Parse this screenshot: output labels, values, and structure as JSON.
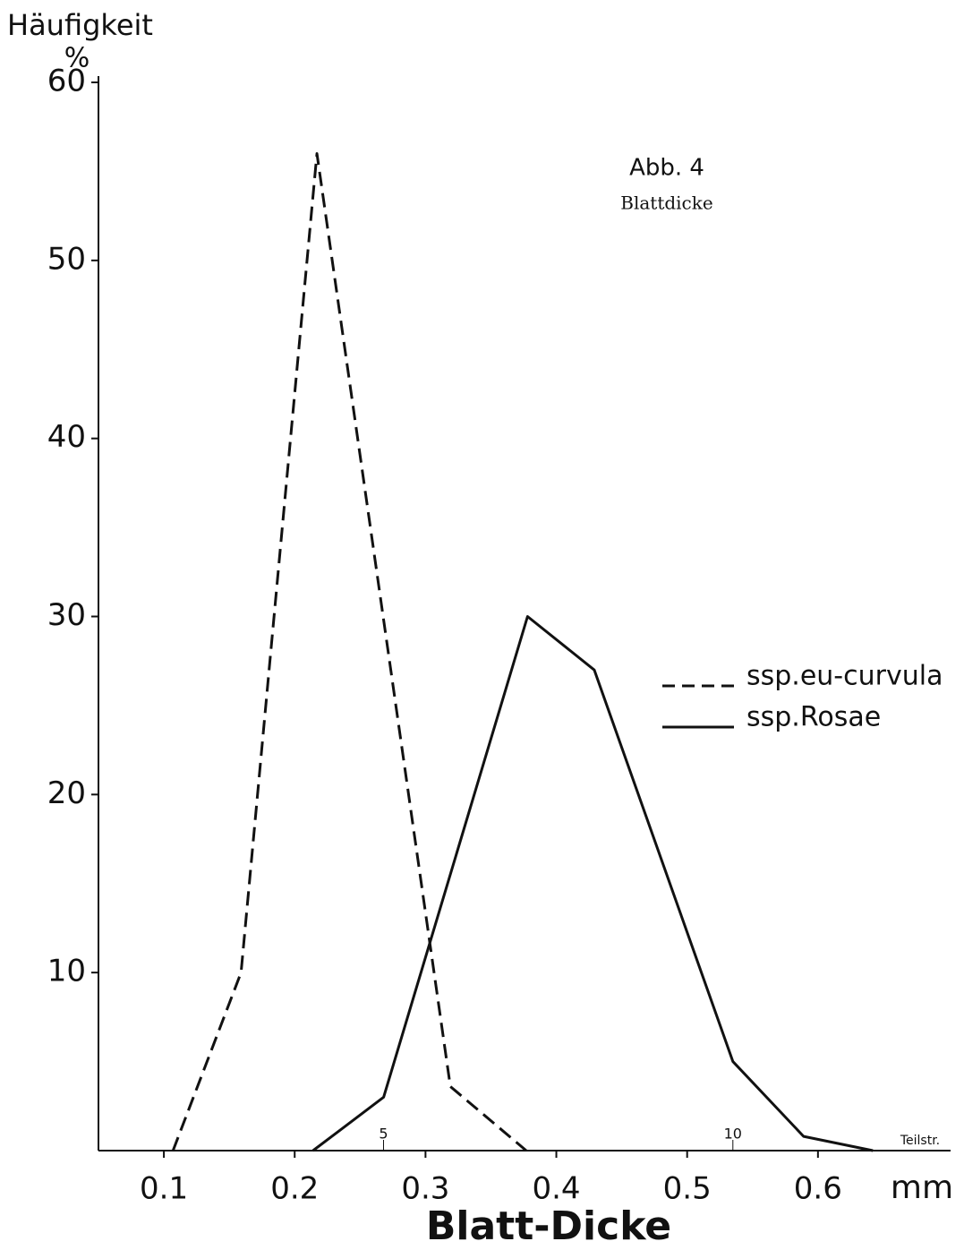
{
  "chart_data": {
    "type": "line",
    "title": "Abb. 4",
    "subtitle": "Blattdicke",
    "y_label": "Häufigkeit",
    "y_unit": "%",
    "x_label": "Blatt-Dicke",
    "x_unit": "mm",
    "x2_label": "Teilstr.",
    "xlim": [
      0.05,
      0.7
    ],
    "xticks": [
      0.1,
      0.2,
      0.3,
      0.4,
      0.5,
      0.6
    ],
    "x2lim": [
      0.92,
      13.09
    ],
    "x2ticks": [
      5,
      10
    ],
    "ylim": [
      0,
      60
    ],
    "yticks": [
      10,
      20,
      30,
      40,
      50,
      60
    ],
    "legend": "right",
    "series": [
      {
        "name": "ssp.eu-curvula",
        "color": "#111111",
        "line_style": "dashed",
        "x": [
          0.107,
          0.159,
          0.217,
          0.319,
          0.377
        ],
        "values": [
          0,
          10,
          56,
          3.6,
          0
        ]
      },
      {
        "name": "ssp.Rosae",
        "color": "#111111",
        "line_style": "solid",
        "x": [
          0.214,
          0.268,
          0.378,
          0.429,
          0.535,
          0.589,
          0.642
        ],
        "values": [
          0,
          3,
          30,
          27,
          5,
          0.8,
          0
        ]
      }
    ]
  }
}
